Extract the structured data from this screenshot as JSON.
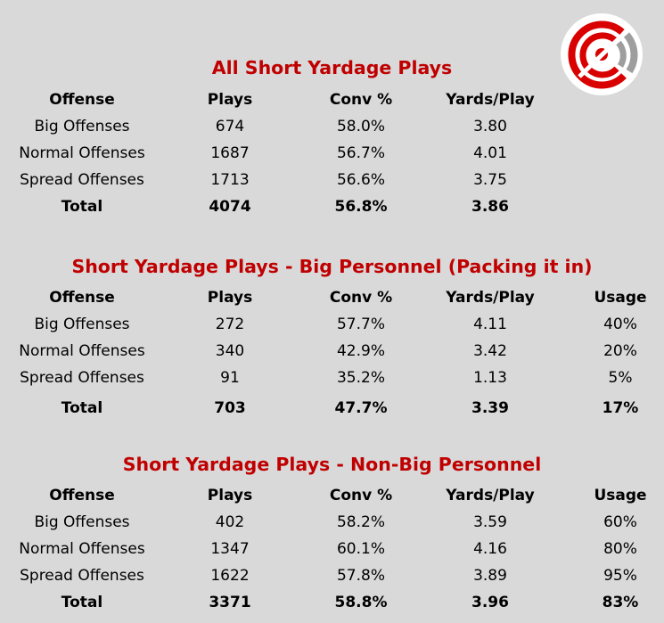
{
  "logo": {
    "name": "target-logo-icon",
    "colors": [
      "#d90000",
      "#9e9e9e"
    ]
  },
  "columns": {
    "offense": "Offense",
    "plays": "Plays",
    "conv": "Conv %",
    "ypp": "Yards/Play",
    "usage": "Usage"
  },
  "sections": [
    {
      "title": "All Short Yardage Plays",
      "rows": [
        {
          "offense": "Big Offenses",
          "plays": "674",
          "conv": "58.0%",
          "ypp": "3.80"
        },
        {
          "offense": "Normal Offenses",
          "plays": "1687",
          "conv": "56.7%",
          "ypp": "4.01"
        },
        {
          "offense": "Spread Offenses",
          "plays": "1713",
          "conv": "56.6%",
          "ypp": "3.75"
        }
      ],
      "total": {
        "offense": "Total",
        "plays": "4074",
        "conv": "56.8%",
        "ypp": "3.86"
      }
    },
    {
      "title": "Short Yardage Plays - Big Personnel (Packing it in)",
      "rows": [
        {
          "offense": "Big Offenses",
          "plays": "272",
          "conv": "57.7%",
          "ypp": "4.11",
          "usage": "40%"
        },
        {
          "offense": "Normal Offenses",
          "plays": "340",
          "conv": "42.9%",
          "ypp": "3.42",
          "usage": "20%"
        },
        {
          "offense": "Spread Offenses",
          "plays": "91",
          "conv": "35.2%",
          "ypp": "1.13",
          "usage": "5%"
        }
      ],
      "total": {
        "offense": "Total",
        "plays": "703",
        "conv": "47.7%",
        "ypp": "3.39",
        "usage": "17%"
      }
    },
    {
      "title": "Short Yardage Plays - Non-Big Personnel",
      "rows": [
        {
          "offense": "Big Offenses",
          "plays": "402",
          "conv": "58.2%",
          "ypp": "3.59",
          "usage": "60%"
        },
        {
          "offense": "Normal Offenses",
          "plays": "1347",
          "conv": "60.1%",
          "ypp": "4.16",
          "usage": "80%"
        },
        {
          "offense": "Spread Offenses",
          "plays": "1622",
          "conv": "57.8%",
          "ypp": "3.89",
          "usage": "95%"
        }
      ],
      "total": {
        "offense": "Total",
        "plays": "3371",
        "conv": "58.8%",
        "ypp": "3.96",
        "usage": "83%"
      }
    }
  ]
}
